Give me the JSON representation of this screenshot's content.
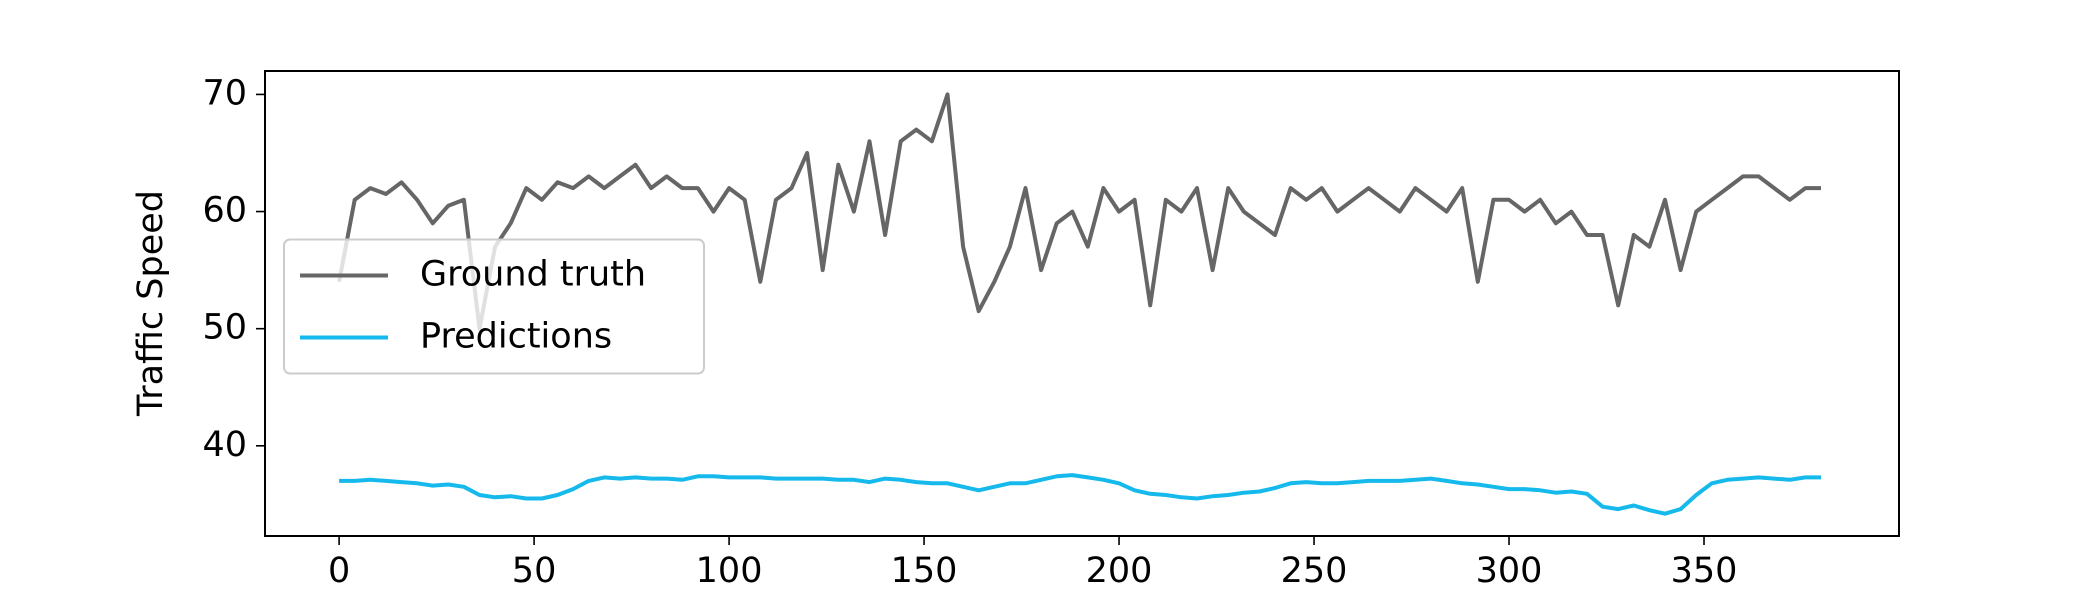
{
  "chart_data": {
    "type": "line",
    "ylabel": "Traffic Speed",
    "x": [
      0,
      4,
      8,
      12,
      16,
      20,
      24,
      28,
      32,
      36,
      40,
      44,
      48,
      52,
      56,
      60,
      64,
      68,
      72,
      76,
      80,
      84,
      88,
      92,
      96,
      100,
      104,
      108,
      112,
      116,
      120,
      124,
      128,
      132,
      136,
      140,
      144,
      148,
      152,
      156,
      160,
      164,
      168,
      172,
      176,
      180,
      184,
      188,
      192,
      196,
      200,
      204,
      208,
      212,
      216,
      220,
      224,
      228,
      232,
      236,
      240,
      244,
      248,
      252,
      256,
      260,
      264,
      268,
      272,
      276,
      280,
      284,
      288,
      292,
      296,
      300,
      304,
      308,
      312,
      316,
      320,
      324,
      328,
      332,
      336,
      340,
      344,
      348,
      352,
      356,
      360,
      364,
      368,
      372,
      376,
      380
    ],
    "series": [
      {
        "name": "Ground truth",
        "color": "#666666",
        "values": [
          54,
          61,
          62,
          61.5,
          62.5,
          61,
          59,
          60.5,
          61,
          50,
          57,
          59,
          62,
          61,
          62.5,
          62,
          63,
          62,
          63,
          64,
          62,
          63,
          62,
          62,
          60,
          62,
          61,
          54,
          61,
          62,
          65,
          55,
          64,
          60,
          66,
          58,
          66,
          67,
          66,
          70,
          57,
          51.5,
          54,
          57,
          62,
          55,
          59,
          60,
          57,
          62,
          60,
          61,
          52,
          61,
          60,
          62,
          55,
          62,
          60,
          59,
          58,
          62,
          61,
          62,
          60,
          61,
          62,
          61,
          60,
          62,
          61,
          60,
          62,
          54,
          61,
          61,
          60,
          61,
          59,
          60,
          58,
          58,
          52,
          58,
          57,
          61,
          55,
          60,
          61,
          62,
          63,
          63,
          62,
          61,
          62,
          62
        ]
      },
      {
        "name": "Predictions",
        "color": "#15b9ec",
        "values": [
          37,
          37,
          37.1,
          37,
          36.9,
          36.8,
          36.6,
          36.7,
          36.5,
          35.8,
          35.6,
          35.7,
          35.5,
          35.5,
          35.8,
          36.3,
          37,
          37.3,
          37.2,
          37.3,
          37.2,
          37.2,
          37.1,
          37.4,
          37.4,
          37.3,
          37.3,
          37.3,
          37.2,
          37.2,
          37.2,
          37.2,
          37.1,
          37.1,
          36.9,
          37.2,
          37.1,
          36.9,
          36.8,
          36.8,
          36.5,
          36.2,
          36.5,
          36.8,
          36.8,
          37.1,
          37.4,
          37.5,
          37.3,
          37.1,
          36.8,
          36.2,
          35.9,
          35.8,
          35.6,
          35.5,
          35.7,
          35.8,
          36,
          36.1,
          36.4,
          36.8,
          36.9,
          36.8,
          36.8,
          36.9,
          37,
          37,
          37,
          37.1,
          37.2,
          37,
          36.8,
          36.7,
          36.5,
          36.3,
          36.3,
          36.2,
          36,
          36.1,
          35.9,
          34.8,
          34.6,
          34.9,
          34.5,
          34.2,
          34.6,
          35.8,
          36.8,
          37.1,
          37.2,
          37.3,
          37.2,
          37.1,
          37.3,
          37.3
        ]
      }
    ],
    "xlim": [
      -19,
      400
    ],
    "ylim": [
      32.3,
      72
    ],
    "xticks": [
      0,
      50,
      100,
      150,
      200,
      250,
      300,
      350
    ],
    "yticks": [
      40,
      50,
      60,
      70
    ],
    "legend": "center left"
  }
}
